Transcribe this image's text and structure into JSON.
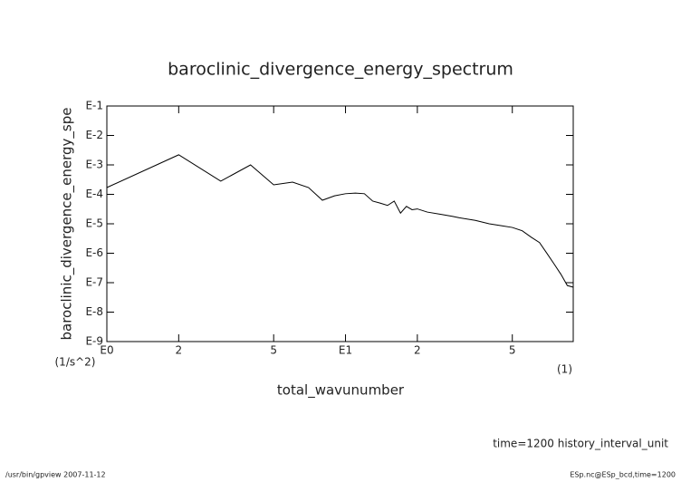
{
  "chart_data": {
    "type": "line",
    "title": "baroclinic_divergence_energy_spectrum",
    "x_label": "total_wavunumber",
    "y_label": "baroclinic_divergence_energy_spe",
    "x_unit": "(1)",
    "y_unit": "(1/s^2)",
    "annotation": "time=1200 history_interval_unit",
    "footer_left": "/usr/bin/gpview  2007-11-12",
    "footer_right": "ESp.nc@ESp_bcd,time=1200",
    "xlog": true,
    "ylog": true,
    "grid": false,
    "xlim": [
      1,
      90
    ],
    "ylim": [
      1e-09,
      0.1
    ],
    "xticks": [
      {
        "value": 1,
        "label": "E0"
      },
      2,
      5,
      {
        "value": 10,
        "label": "E1"
      },
      {
        "value": 20,
        "label": "2"
      },
      {
        "value": 50,
        "label": "5"
      }
    ],
    "yticks": [
      {
        "value": 1e-09,
        "label": "E-9"
      },
      {
        "value": 1e-08,
        "label": "E-8"
      },
      {
        "value": 1e-07,
        "label": "E-7"
      },
      {
        "value": 1e-06,
        "label": "E-6"
      },
      {
        "value": 1e-05,
        "label": "E-5"
      },
      {
        "value": 0.0001,
        "label": "E-4"
      },
      {
        "value": 0.001,
        "label": "E-3"
      },
      {
        "value": 0.01,
        "label": "E-2"
      },
      {
        "value": 0.1,
        "label": "E-1"
      }
    ],
    "x": [
      1,
      2,
      3,
      4,
      5,
      6,
      7,
      8,
      9,
      10,
      11,
      12,
      13,
      14,
      15,
      16,
      17,
      18,
      19,
      20,
      22,
      25,
      28,
      30,
      35,
      40,
      45,
      50,
      55,
      60,
      65,
      70,
      75,
      80,
      85,
      90
    ],
    "series": [
      {
        "color": "#000000",
        "values": [
          0.00017,
          0.0022,
          0.00028,
          0.001,
          0.00021,
          0.00026,
          0.00017,
          6.3e-05,
          8.9e-05,
          0.000105,
          0.00011,
          0.000105,
          5.9e-05,
          5e-05,
          4.2e-05,
          5.9e-05,
          2.3e-05,
          3.9e-05,
          3e-05,
          3.2e-05,
          2.5e-05,
          2.1e-05,
          1.8e-05,
          1.6e-05,
          1.3e-05,
          1e-05,
          8.6e-06,
          7.5e-06,
          5.8e-06,
          3.5e-06,
          2.3e-06,
          9.6e-07,
          4.2e-07,
          1.9e-07,
          8e-08,
          7e-08
        ]
      }
    ]
  }
}
